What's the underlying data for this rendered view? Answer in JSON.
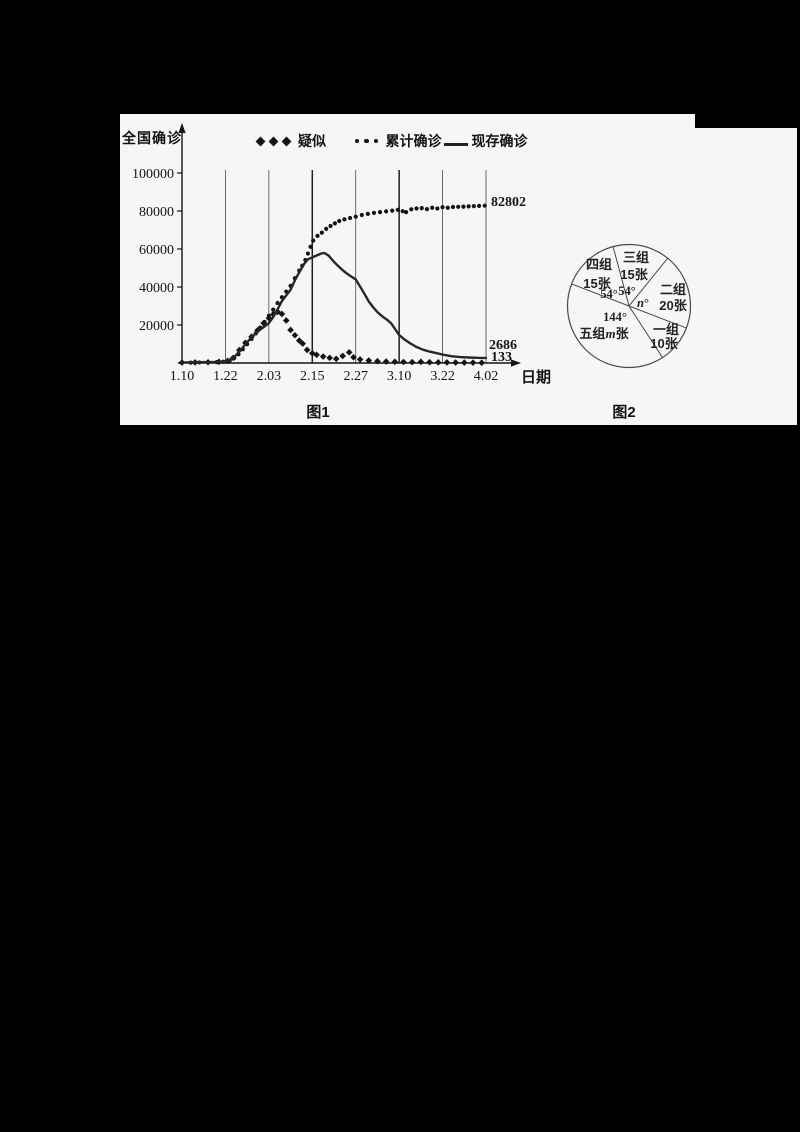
{
  "page": {
    "background": "#000000",
    "panel_bg": "#f6f6f4",
    "ink": "#141414",
    "grid_color": "#4a4a4a"
  },
  "figure1": {
    "caption": "图1",
    "y_axis_label": "全国确诊",
    "x_axis_label": "日期",
    "legend": [
      {
        "label": "疑似",
        "marker": "diamonds"
      },
      {
        "label": "累计确诊",
        "marker": "dots"
      },
      {
        "label": "现存确诊",
        "marker": "solid-line"
      }
    ],
    "end_labels": {
      "cumulative": "82802",
      "existing": "2686",
      "suspected": "133"
    }
  },
  "figure2": {
    "caption": "图2"
  },
  "chart_data": [
    {
      "type": "line",
      "title": "图1",
      "ylabel": "全国确诊",
      "xlabel": "日期",
      "x_ticks": [
        "1.10",
        "1.22",
        "2.03",
        "2.15",
        "2.27",
        "3.10",
        "3.22",
        "4.02"
      ],
      "bold_gridline_ticks": [
        "2.15",
        "3.10"
      ],
      "y_ticks": [
        20000,
        40000,
        60000,
        80000,
        100000
      ],
      "ylim": [
        0,
        105000
      ],
      "grid": "vertical line at each x tick, 1.22 through 4.02",
      "legend_position": "top",
      "x_unit_note": "x values below are tick indices: 0=1.10, 1=1.22, 2=2.03, 3=2.15, 4=2.27, 5=3.10, 6=3.22, 7=4.02",
      "series": [
        {
          "name": "疑似",
          "marker": "diamond",
          "end_label": "133",
          "points": [
            [
              0,
              250
            ],
            [
              0.3,
              320
            ],
            [
              0.6,
              400
            ],
            [
              0.85,
              600
            ],
            [
              1.05,
              1100
            ],
            [
              1.18,
              2700
            ],
            [
              1.32,
              6800
            ],
            [
              1.46,
              10600
            ],
            [
              1.6,
              13800
            ],
            [
              1.74,
              17200
            ],
            [
              1.88,
              21000
            ],
            [
              2.0,
              23600
            ],
            [
              2.1,
              25600
            ],
            [
              2.2,
              26900
            ],
            [
              2.3,
              25800
            ],
            [
              2.4,
              22400
            ],
            [
              2.5,
              17400
            ],
            [
              2.6,
              14600
            ],
            [
              2.7,
              11800
            ],
            [
              2.78,
              10200
            ],
            [
              2.88,
              6900
            ],
            [
              3.0,
              5100
            ],
            [
              3.1,
              4300
            ],
            [
              3.25,
              3400
            ],
            [
              3.4,
              2700
            ],
            [
              3.55,
              2200
            ],
            [
              3.7,
              3700
            ],
            [
              3.85,
              5600
            ],
            [
              3.95,
              3000
            ],
            [
              4.1,
              1900
            ],
            [
              4.3,
              1300
            ],
            [
              4.5,
              950
            ],
            [
              4.7,
              750
            ],
            [
              4.9,
              620
            ],
            [
              5.1,
              520
            ],
            [
              5.3,
              460
            ],
            [
              5.5,
              620
            ],
            [
              5.7,
              420
            ],
            [
              5.9,
              360
            ],
            [
              6.1,
              310
            ],
            [
              6.3,
              260
            ],
            [
              6.5,
              220
            ],
            [
              6.7,
              180
            ],
            [
              6.9,
              140
            ]
          ]
        },
        {
          "name": "累计确诊",
          "marker": "dot",
          "end_label": "82802",
          "points": [
            [
              0,
              150
            ],
            [
              0.2,
              220
            ],
            [
              0.4,
              300
            ],
            [
              0.6,
              380
            ],
            [
              0.8,
              480
            ],
            [
              0.95,
              650
            ],
            [
              1.1,
              1300
            ],
            [
              1.2,
              2600
            ],
            [
              1.3,
              4600
            ],
            [
              1.4,
              7200
            ],
            [
              1.5,
              9900
            ],
            [
              1.6,
              12600
            ],
            [
              1.7,
              15600
            ],
            [
              1.8,
              18600
            ],
            [
              1.9,
              21600
            ],
            [
              2.0,
              24900
            ],
            [
              2.1,
              28100
            ],
            [
              2.2,
              31600
            ],
            [
              2.3,
              34600
            ],
            [
              2.4,
              37600
            ],
            [
              2.5,
              40600
            ],
            [
              2.6,
              44600
            ],
            [
              2.7,
              48600
            ],
            [
              2.77,
              51200
            ],
            [
              2.84,
              54200
            ],
            [
              2.9,
              57600
            ],
            [
              2.96,
              61200
            ],
            [
              3.02,
              64400
            ],
            [
              3.12,
              66900
            ],
            [
              3.22,
              68600
            ],
            [
              3.32,
              70600
            ],
            [
              3.42,
              72100
            ],
            [
              3.52,
              73500
            ],
            [
              3.62,
              74700
            ],
            [
              3.74,
              75600
            ],
            [
              3.87,
              76300
            ],
            [
              4.0,
              77000
            ],
            [
              4.14,
              77900
            ],
            [
              4.28,
              78500
            ],
            [
              4.42,
              79000
            ],
            [
              4.56,
              79400
            ],
            [
              4.7,
              79800
            ],
            [
              4.84,
              80200
            ],
            [
              4.97,
              80600
            ],
            [
              5.08,
              79900
            ],
            [
              5.16,
              79400
            ],
            [
              5.28,
              80900
            ],
            [
              5.4,
              81300
            ],
            [
              5.52,
              81500
            ],
            [
              5.64,
              81000
            ],
            [
              5.76,
              81700
            ],
            [
              5.88,
              81300
            ],
            [
              6.0,
              82000
            ],
            [
              6.12,
              81700
            ],
            [
              6.24,
              82100
            ],
            [
              6.36,
              82200
            ],
            [
              6.48,
              82300
            ],
            [
              6.6,
              82450
            ],
            [
              6.72,
              82550
            ],
            [
              6.84,
              82700
            ],
            [
              6.97,
              82802
            ]
          ]
        },
        {
          "name": "现存确诊",
          "marker": "line",
          "end_label": "2686",
          "points": [
            [
              0,
              300
            ],
            [
              0.4,
              400
            ],
            [
              0.8,
              550
            ],
            [
              1.0,
              800
            ],
            [
              1.1,
              1400
            ],
            [
              1.2,
              3000
            ],
            [
              1.3,
              5600
            ],
            [
              1.45,
              9500
            ],
            [
              1.6,
              13600
            ],
            [
              1.75,
              16800
            ],
            [
              1.9,
              19200
            ],
            [
              2.0,
              21000
            ],
            [
              2.1,
              24200
            ],
            [
              2.2,
              28200
            ],
            [
              2.3,
              32600
            ],
            [
              2.4,
              35600
            ],
            [
              2.5,
              38600
            ],
            [
              2.6,
              43600
            ],
            [
              2.7,
              47800
            ],
            [
              2.8,
              51800
            ],
            [
              2.9,
              54600
            ],
            [
              3.0,
              55600
            ],
            [
              3.1,
              56600
            ],
            [
              3.2,
              57600
            ],
            [
              3.28,
              57900
            ],
            [
              3.38,
              56400
            ],
            [
              3.5,
              53200
            ],
            [
              3.6,
              51000
            ],
            [
              3.72,
              48400
            ],
            [
              3.85,
              46200
            ],
            [
              4.0,
              44000
            ],
            [
              4.1,
              40200
            ],
            [
              4.2,
              36400
            ],
            [
              4.3,
              32400
            ],
            [
              4.4,
              29400
            ],
            [
              4.5,
              26800
            ],
            [
              4.62,
              24400
            ],
            [
              4.72,
              22800
            ],
            [
              4.82,
              20800
            ],
            [
              4.92,
              17400
            ],
            [
              5.0,
              14800
            ],
            [
              5.12,
              12400
            ],
            [
              5.25,
              10400
            ],
            [
              5.4,
              8400
            ],
            [
              5.55,
              7000
            ],
            [
              5.7,
              6000
            ],
            [
              5.85,
              5200
            ],
            [
              6.0,
              4400
            ],
            [
              6.2,
              3600
            ],
            [
              6.4,
              3100
            ],
            [
              6.6,
              2900
            ],
            [
              6.8,
              2750
            ],
            [
              7.0,
              2686
            ]
          ]
        }
      ]
    },
    {
      "type": "pie",
      "title": "图2",
      "slices": [
        {
          "group": "三组",
          "count_label": "15张",
          "angle_label": "54°",
          "start_deg": 51,
          "end_deg": 105
        },
        {
          "group": "四组",
          "count_label": "15张",
          "angle_label": "54°",
          "start_deg": 105,
          "end_deg": 159
        },
        {
          "group": "五组",
          "count_label": "m张",
          "angle_label": "144°",
          "start_deg": 159,
          "end_deg": 303,
          "single_line": true
        },
        {
          "group": "一组",
          "count_label": "10张",
          "angle_label": "",
          "start_deg": 303,
          "end_deg": 339
        },
        {
          "group": "二组",
          "count_label": "20张",
          "angle_label": "n°",
          "start_deg": 339,
          "end_deg": 411
        }
      ]
    }
  ]
}
